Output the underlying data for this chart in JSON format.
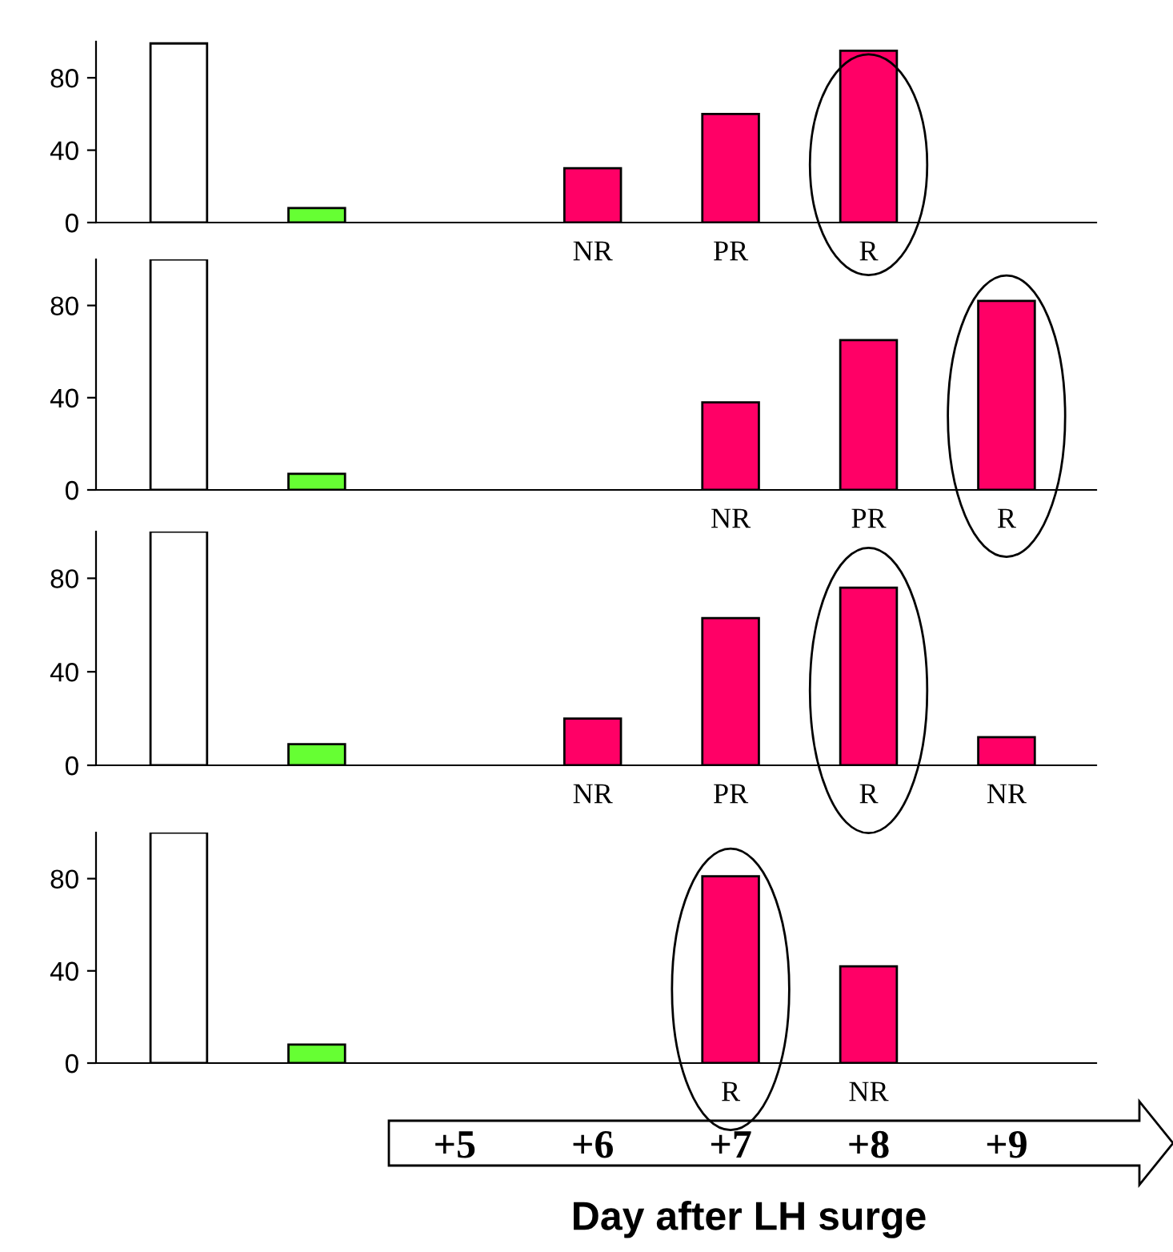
{
  "chart_data": [
    {
      "type": "bar",
      "categories": [
        null,
        null,
        null,
        "NR",
        "PR",
        "R",
        null
      ],
      "values": [
        99,
        8,
        null,
        30,
        60,
        95,
        null
      ],
      "colors": [
        "#ffffff",
        "#66ff33",
        "#ff0066",
        "#ff0066",
        "#ff0066",
        "#ff0066",
        "#ff0066"
      ],
      "ylim": [
        0,
        100
      ],
      "yticks": [
        0,
        40,
        80
      ],
      "grid": false
    },
    {
      "type": "bar",
      "categories": [
        null,
        null,
        null,
        null,
        "NR",
        "PR",
        "R"
      ],
      "values": [
        100,
        7,
        null,
        null,
        38,
        65,
        82
      ],
      "colors": [
        "#ffffff",
        "#66ff33",
        "#ff0066",
        "#ff0066",
        "#ff0066",
        "#ff0066",
        "#ff0066"
      ],
      "ylim": [
        0,
        100
      ],
      "yticks": [
        0,
        40,
        80
      ],
      "grid": false
    },
    {
      "type": "bar",
      "categories": [
        null,
        null,
        null,
        "NR",
        "PR",
        "R",
        "NR"
      ],
      "values": [
        100,
        9,
        null,
        20,
        63,
        76,
        12
      ],
      "colors": [
        "#ffffff",
        "#66ff33",
        "#ff0066",
        "#ff0066",
        "#ff0066",
        "#ff0066",
        "#ff0066"
      ],
      "ylim": [
        0,
        100
      ],
      "yticks": [
        0,
        40,
        80
      ],
      "grid": false
    },
    {
      "type": "bar",
      "categories": [
        null,
        null,
        null,
        null,
        "R",
        "NR",
        null
      ],
      "values": [
        100,
        8,
        null,
        null,
        81,
        42,
        null
      ],
      "colors": [
        "#ffffff",
        "#66ff33",
        "#ff0066",
        "#ff0066",
        "#ff0066",
        "#ff0066",
        "#ff0066"
      ],
      "ylim": [
        0,
        100
      ],
      "yticks": [
        0,
        40,
        80
      ],
      "grid": false,
      "xlabel": "Day after LH surge",
      "annotations": [
        "+5",
        "+6",
        "+7",
        "+8",
        "+9"
      ]
    }
  ]
}
